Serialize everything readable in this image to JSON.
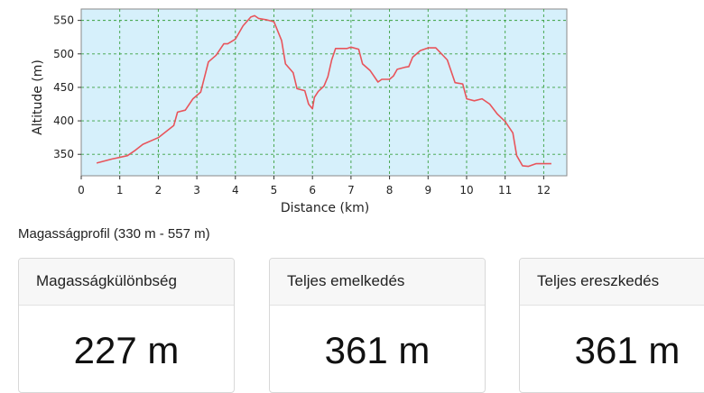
{
  "chart_data": {
    "type": "line",
    "title": "",
    "xlabel": "Distance (km)",
    "ylabel": "Altitude (m)",
    "xlim": [
      0,
      12.6
    ],
    "ylim": [
      318,
      567
    ],
    "xticks": [
      0,
      1,
      2,
      3,
      4,
      5,
      6,
      7,
      8,
      9,
      10,
      11,
      12
    ],
    "yticks": [
      350,
      400,
      450,
      500,
      550
    ],
    "grid": true,
    "legend": "none",
    "line_color": "#e8545b",
    "plot_background": "#d6f0fb",
    "grid_color": "#3aa040",
    "series": [
      {
        "x": [
          0.4,
          0.8,
          1.2,
          1.4,
          1.6,
          2.0,
          2.4,
          2.5,
          2.7,
          2.9,
          3.1,
          3.3,
          3.5,
          3.7,
          3.8,
          4.0,
          4.2,
          4.4,
          4.5,
          4.6,
          4.8,
          5.0,
          5.2,
          5.3,
          5.5,
          5.6,
          5.8,
          5.9,
          6.0,
          6.05,
          6.15,
          6.3,
          6.4,
          6.5,
          6.6,
          6.7,
          6.9,
          7.0,
          7.2,
          7.3,
          7.5,
          7.7,
          7.8,
          8.0,
          8.1,
          8.2,
          8.4,
          8.5,
          8.6,
          8.8,
          9.0,
          9.2,
          9.5,
          9.7,
          9.9,
          10.0,
          10.2,
          10.4,
          10.6,
          10.8,
          11.0,
          11.2,
          11.3,
          11.45,
          11.6,
          11.8,
          12.2
        ],
        "y": [
          337,
          343,
          348,
          356,
          365,
          375,
          393,
          413,
          416,
          433,
          443,
          488,
          498,
          515,
          515,
          522,
          542,
          555,
          557,
          553,
          551,
          548,
          520,
          485,
          472,
          448,
          445,
          425,
          418,
          435,
          444,
          452,
          466,
          491,
          508,
          508,
          508,
          510,
          507,
          485,
          475,
          458,
          462,
          462,
          467,
          477,
          480,
          481,
          495,
          505,
          509,
          509,
          491,
          457,
          455,
          433,
          430,
          433,
          425,
          410,
          399,
          382,
          348,
          333,
          332,
          336,
          336
        ]
      }
    ]
  },
  "summary": {
    "caption": "Magasságprofil (330 m - 557 m)"
  },
  "stats": [
    {
      "label": "Magasságkülönbség",
      "value": "227 m"
    },
    {
      "label": "Teljes emelkedés",
      "value": "361 m"
    },
    {
      "label": "Teljes ereszkedés",
      "value": "361 m"
    }
  ]
}
